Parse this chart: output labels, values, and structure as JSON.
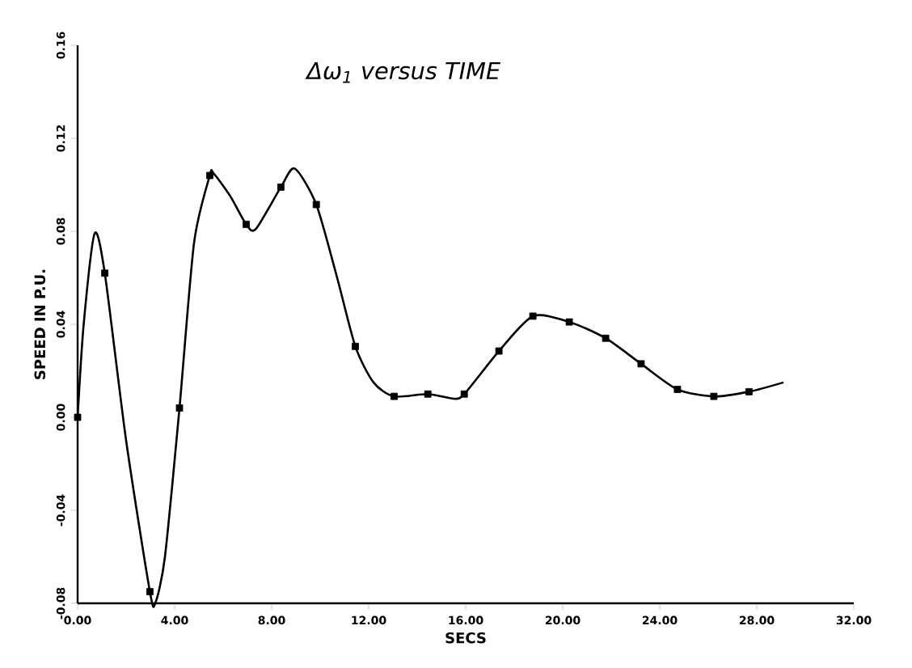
{
  "chart_data": {
    "type": "line",
    "title": "Δω$_{1}$ versus TIME",
    "xlabel": "SECS",
    "ylabel": "SPEED IN P.U.",
    "xlim": [
      0,
      32
    ],
    "ylim": [
      -0.08,
      0.16
    ],
    "xticks": [
      {
        "value": 0,
        "label": "0.00"
      },
      {
        "value": 4,
        "label": "4.00"
      },
      {
        "value": 8,
        "label": "8.00"
      },
      {
        "value": 12,
        "label": "12.00"
      },
      {
        "value": 16,
        "label": "16.00"
      },
      {
        "value": 20,
        "label": "20.00"
      },
      {
        "value": 24,
        "label": "24.00"
      },
      {
        "value": 28,
        "label": "28.00"
      },
      {
        "value": 32,
        "label": "32.00"
      }
    ],
    "yticks": [
      {
        "value": -0.08,
        "label": "-0.08"
      },
      {
        "value": -0.04,
        "label": "-0.04"
      },
      {
        "value": 0,
        "label": "0.00"
      },
      {
        "value": 0.04,
        "label": "0.04"
      },
      {
        "value": 0.08,
        "label": "0.08"
      },
      {
        "value": 0.12,
        "label": "0.12"
      },
      {
        "value": 0.16,
        "label": "0.16"
      }
    ],
    "grid": false,
    "series": [
      {
        "color": "#000000",
        "marker": "none",
        "x": [
          0,
          0.25,
          0.7,
          1.12,
          2.0,
          2.98,
          3.2,
          3.6,
          4.2,
          4.8,
          5.45,
          5.6,
          6.3,
          6.95,
          7.35,
          8.38,
          8.95,
          9.84,
          10.7,
          11.45,
          12.2,
          13.05,
          14.44,
          15.5,
          15.94,
          17.37,
          18.77,
          20.27,
          21.77,
          23.23,
          24.73,
          26.23,
          27.68,
          29.1
        ],
        "values": [
          0,
          0.04,
          0.079,
          0.062,
          -0.01,
          -0.075,
          -0.08,
          -0.06,
          0.004,
          0.075,
          0.104,
          0.105,
          0.095,
          0.083,
          0.081,
          0.099,
          0.107,
          0.0915,
          0.06,
          0.0305,
          0.015,
          0.009,
          0.01,
          0.008,
          0.01,
          0.0285,
          0.0435,
          0.041,
          0.034,
          0.023,
          0.012,
          0.009,
          0.011,
          0.015
        ]
      },
      {
        "type": "scatter",
        "color": "#000000",
        "marker": "square",
        "x": [
          0,
          1.12,
          2.98,
          4.2,
          5.45,
          6.95,
          8.38,
          9.84,
          11.45,
          13.05,
          14.44,
          15.94,
          17.37,
          18.77,
          20.27,
          21.77,
          23.23,
          24.73,
          26.23,
          27.68
        ],
        "values": [
          0,
          0.062,
          -0.075,
          0.004,
          0.104,
          0.083,
          0.099,
          0.0915,
          0.0305,
          0.009,
          0.01,
          0.01,
          0.0285,
          0.0435,
          0.041,
          0.034,
          0.023,
          0.012,
          0.009,
          0.011
        ]
      }
    ]
  }
}
